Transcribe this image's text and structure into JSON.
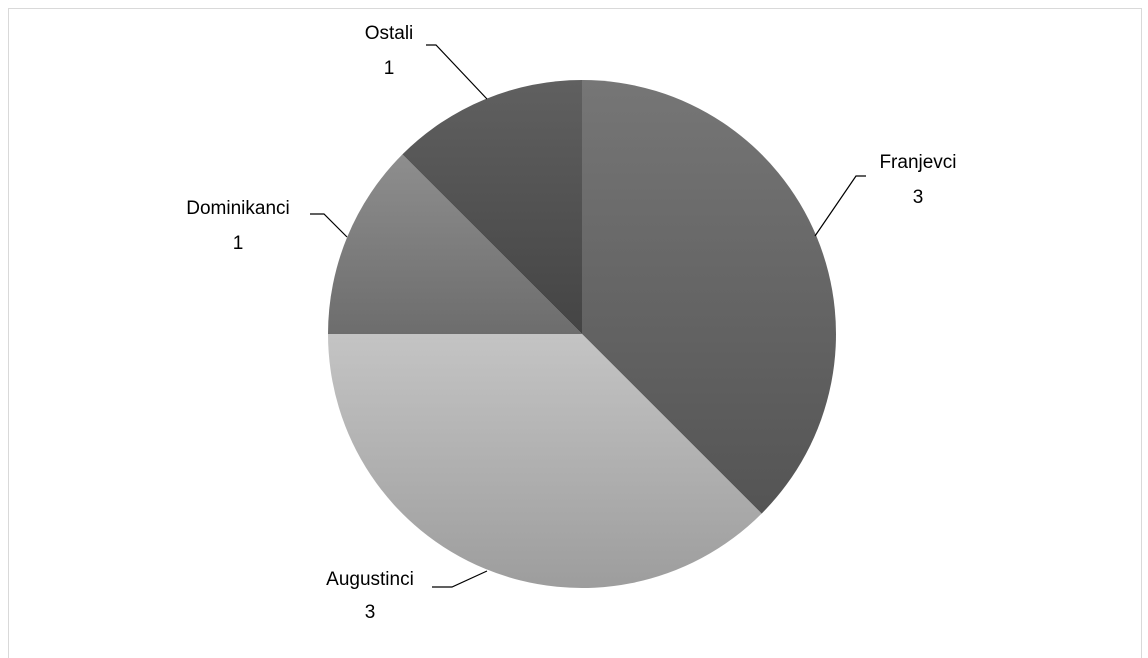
{
  "chart_data": {
    "type": "pie",
    "title": "",
    "slices": [
      {
        "label": "Franjevci",
        "value": 3,
        "value_label": "3",
        "color": "#5e5e5e"
      },
      {
        "label": "Augustinci",
        "value": 3,
        "value_label": "3",
        "color": "#a9a9a9"
      },
      {
        "label": "Dominikanci",
        "value": 1,
        "value_label": "1",
        "color": "#7b7b7b"
      },
      {
        "label": "Ostali",
        "value": 1,
        "value_label": "1",
        "color": "#4f4f4f"
      }
    ],
    "start_angle_deg": 0,
    "direction": "clockwise",
    "legend": "none",
    "data_labels": "outside-with-leader-lines"
  }
}
